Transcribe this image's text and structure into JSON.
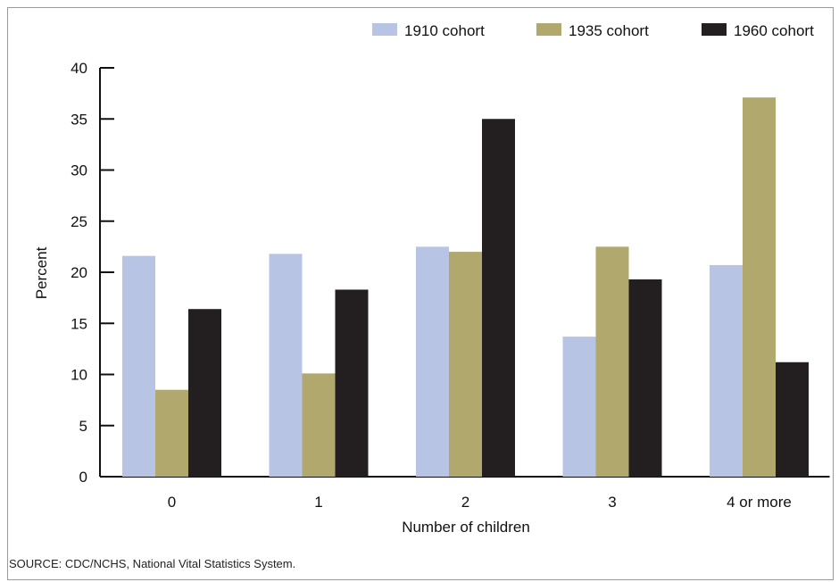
{
  "source_note": "SOURCE: CDC/NCHS, National Vital Statistics System.",
  "chart_data": {
    "type": "bar",
    "xlabel": "Number of children",
    "ylabel": "Percent",
    "categories": [
      "0",
      "1",
      "2",
      "3",
      "4 or more"
    ],
    "ylim": [
      0,
      40
    ],
    "yticks": [
      0,
      5,
      10,
      15,
      20,
      25,
      30,
      35,
      40
    ],
    "grid": false,
    "legend_position": "top-right",
    "series": [
      {
        "name": "1910 cohort",
        "color": "#b8c4e4",
        "values": [
          21.6,
          21.8,
          22.5,
          13.7,
          20.7
        ]
      },
      {
        "name": "1935 cohort",
        "color": "#b0a86c",
        "values": [
          8.5,
          10.1,
          22.0,
          22.5,
          37.1
        ]
      },
      {
        "name": "1960 cohort",
        "color": "#231f20",
        "values": [
          16.4,
          18.3,
          35.0,
          19.3,
          11.2
        ]
      }
    ]
  }
}
